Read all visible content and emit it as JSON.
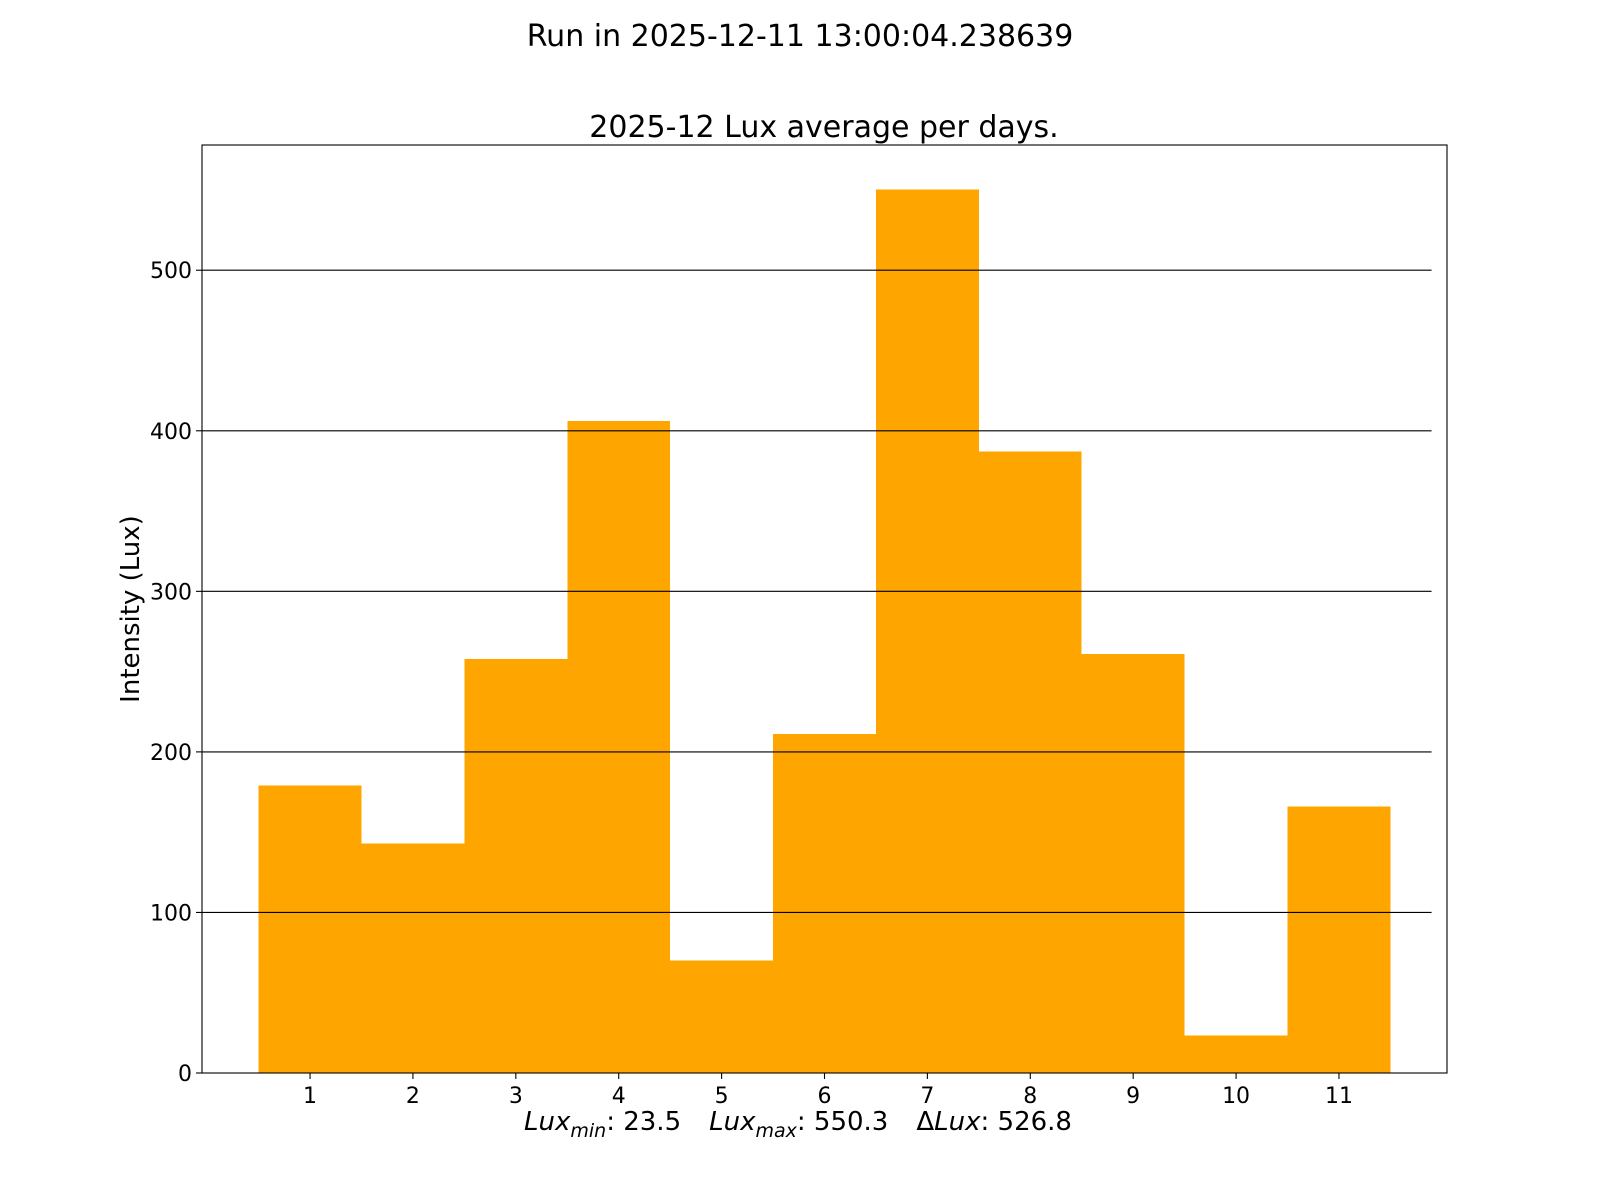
{
  "suptitle": "Run in 2025-12-11 13:00:04.238639",
  "chart_data": {
    "type": "bar",
    "title": "2025-12 Lux average per days.",
    "ylabel": "Intensity (Lux)",
    "xlabel_parts": {
      "min_symbol": "Lux",
      "min_sub": "min",
      "min_value": ": 23.5",
      "max_symbol": "Lux",
      "max_sub": "max",
      "max_value": ": 550.3",
      "delta_prefix": "Δ",
      "delta_symbol": "Lux",
      "delta_value": ": 526.8"
    },
    "categories": [
      "1",
      "2",
      "3",
      "4",
      "5",
      "6",
      "7",
      "8",
      "9",
      "10",
      "11"
    ],
    "x": [
      1,
      2,
      3,
      4,
      5,
      6,
      7,
      8,
      9,
      10,
      11
    ],
    "values": [
      179,
      143,
      258,
      406,
      70,
      211,
      550.3,
      387,
      261,
      23.5,
      166
    ],
    "bar_color": "#ffa500",
    "xlim": [
      -0.05,
      12.05
    ],
    "ylim": [
      0,
      578
    ],
    "yticks": [
      0,
      100,
      200,
      300,
      400,
      500
    ],
    "grid": "horizontal",
    "gridline_color": "#000000"
  }
}
